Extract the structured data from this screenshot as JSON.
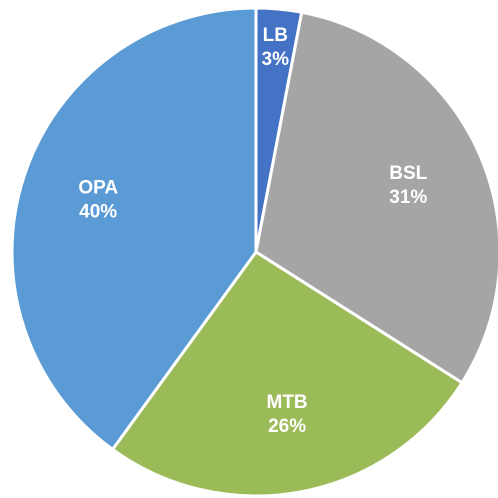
{
  "chart_data": {
    "type": "pie",
    "categories": [
      "LB",
      "BSL",
      "MTB",
      "OPA"
    ],
    "values": [
      3,
      31,
      26,
      40
    ],
    "value_labels": [
      "3%",
      "31%",
      "26%",
      "40%"
    ],
    "colors": [
      "#4472c4",
      "#a5a5a5",
      "#9bbb59",
      "#5b9bd5"
    ]
  }
}
